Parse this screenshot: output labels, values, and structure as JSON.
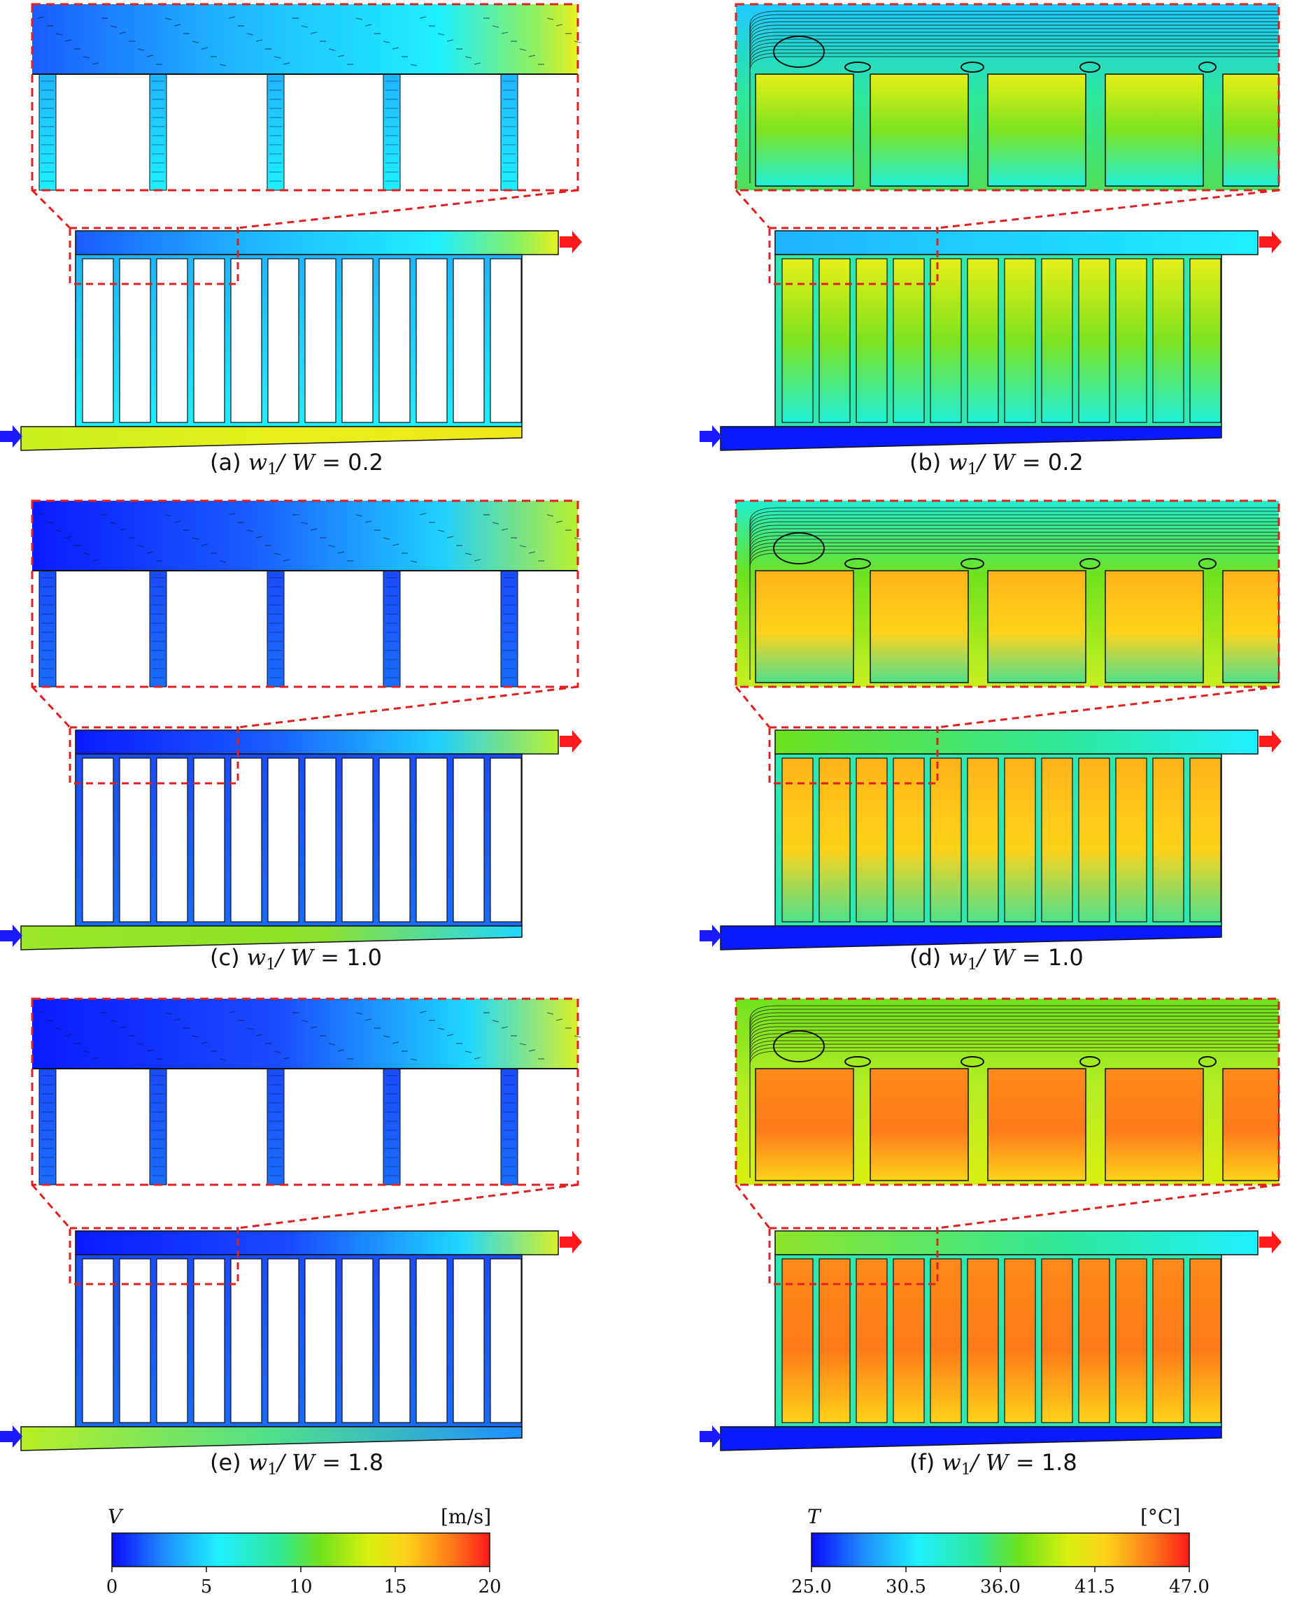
{
  "panels": [
    {
      "id": "a",
      "field": "velocity",
      "label": "(a)",
      "ratio_symbol": "w",
      "ratio_subscript": "1",
      "ratio_denominator": "W",
      "ratio_value": "0.2"
    },
    {
      "id": "b",
      "field": "temperature",
      "label": "(b)",
      "ratio_symbol": "w",
      "ratio_subscript": "1",
      "ratio_denominator": "W",
      "ratio_value": "0.2"
    },
    {
      "id": "c",
      "field": "velocity",
      "label": "(c)",
      "ratio_symbol": "w",
      "ratio_subscript": "1",
      "ratio_denominator": "W",
      "ratio_value": "1.0"
    },
    {
      "id": "d",
      "field": "temperature",
      "label": "(d)",
      "ratio_symbol": "w",
      "ratio_subscript": "1",
      "ratio_denominator": "W",
      "ratio_value": "1.0"
    },
    {
      "id": "e",
      "field": "velocity",
      "label": "(e)",
      "ratio_symbol": "w",
      "ratio_subscript": "1",
      "ratio_denominator": "W",
      "ratio_value": "1.8"
    },
    {
      "id": "f",
      "field": "temperature",
      "label": "(f)",
      "ratio_symbol": "w",
      "ratio_subscript": "1",
      "ratio_denominator": "W",
      "ratio_value": "1.8"
    }
  ],
  "colorbars": {
    "velocity": {
      "symbol": "V",
      "unit": "[m/s]",
      "ticks": [
        "0",
        "5",
        "10",
        "15",
        "20"
      ],
      "min": 0,
      "max": 20
    },
    "temperature": {
      "symbol": "T",
      "unit": "[°C]",
      "ticks": [
        "25.0",
        "30.5",
        "36.0",
        "41.5",
        "47.0"
      ],
      "min": 25.0,
      "max": 47.0
    }
  },
  "colors": {
    "inlet_arrow": "#1a1aff",
    "outlet_arrow": "#ff1a1a",
    "zoom_box": "#e02020",
    "colormap": [
      "#0a0aff",
      "#1f8fff",
      "#1ff0ff",
      "#2ee89a",
      "#6fe21e",
      "#d9f010",
      "#ffd21a",
      "#ff7a1a",
      "#ff1a1a"
    ]
  }
}
